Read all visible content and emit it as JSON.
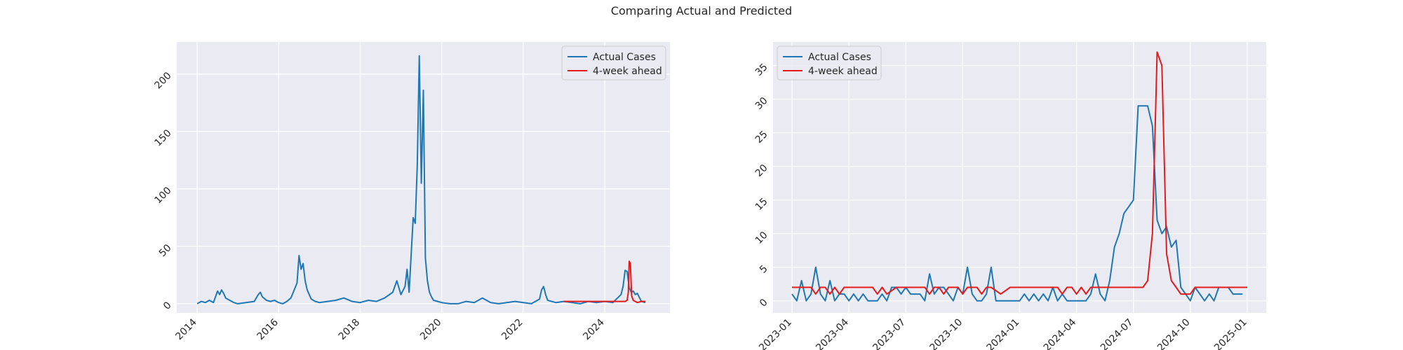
{
  "figure": {
    "title": "Comparing Actual and Predicted"
  },
  "colors": {
    "actual": "#1f77b4",
    "predicted": "#e41a1c",
    "axes_bg": "#eaeaf2",
    "grid": "#ffffff"
  },
  "chart_data": [
    {
      "type": "line",
      "title": "",
      "xlabel": "",
      "ylabel": "",
      "x_axis": "year",
      "xlim": [
        2013.5,
        2025.6
      ],
      "ylim": [
        -8,
        228
      ],
      "x_ticks": [
        2014,
        2016,
        2018,
        2020,
        2022,
        2024
      ],
      "x_tick_labels": [
        "2014",
        "2016",
        "2018",
        "2020",
        "2022",
        "2024"
      ],
      "y_ticks": [
        0,
        50,
        100,
        150,
        200
      ],
      "y_tick_labels": [
        "0",
        "50",
        "100",
        "150",
        "200"
      ],
      "grid": true,
      "legend_position": "upper-right",
      "series": [
        {
          "name": "Actual Cases",
          "color": "#1f77b4",
          "x": [
            2014.0,
            2014.1,
            2014.2,
            2014.3,
            2014.4,
            2014.45,
            2014.5,
            2014.55,
            2014.6,
            2014.65,
            2014.7,
            2014.8,
            2014.9,
            2015.0,
            2015.2,
            2015.4,
            2015.5,
            2015.55,
            2015.6,
            2015.7,
            2015.8,
            2015.9,
            2016.0,
            2016.1,
            2016.2,
            2016.3,
            2016.45,
            2016.5,
            2016.55,
            2016.6,
            2016.65,
            2016.7,
            2016.8,
            2016.9,
            2017.0,
            2017.2,
            2017.4,
            2017.6,
            2017.8,
            2018.0,
            2018.2,
            2018.4,
            2018.6,
            2018.8,
            2018.9,
            2019.0,
            2019.1,
            2019.15,
            2019.2,
            2019.3,
            2019.35,
            2019.4,
            2019.45,
            2019.5,
            2019.55,
            2019.6,
            2019.65,
            2019.7,
            2019.75,
            2019.8,
            2019.9,
            2020.0,
            2020.2,
            2020.4,
            2020.6,
            2020.8,
            2021.0,
            2021.2,
            2021.4,
            2021.6,
            2021.8,
            2022.0,
            2022.2,
            2022.4,
            2022.45,
            2022.5,
            2022.55,
            2022.6,
            2022.8,
            2023.0,
            2023.2,
            2023.4,
            2023.6,
            2023.8,
            2024.0,
            2024.2,
            2024.4,
            2024.45,
            2024.5,
            2024.55,
            2024.6,
            2024.65,
            2024.7,
            2024.75,
            2024.8,
            2024.9,
            2025.0
          ],
          "y": [
            0,
            2,
            1,
            3,
            1,
            6,
            11,
            8,
            12,
            9,
            5,
            3,
            1,
            0,
            1,
            2,
            8,
            10,
            6,
            3,
            2,
            3,
            1,
            0,
            2,
            5,
            18,
            42,
            30,
            35,
            20,
            12,
            4,
            2,
            1,
            2,
            3,
            5,
            2,
            1,
            3,
            2,
            5,
            10,
            20,
            8,
            15,
            30,
            10,
            75,
            70,
            120,
            216,
            105,
            186,
            40,
            20,
            10,
            6,
            3,
            2,
            1,
            0,
            0,
            2,
            1,
            5,
            1,
            0,
            1,
            2,
            1,
            0,
            4,
            12,
            15,
            8,
            3,
            1,
            2,
            1,
            0,
            2,
            1,
            2,
            1,
            8,
            15,
            29,
            28,
            14,
            10,
            11,
            8,
            9,
            2,
            1
          ]
        },
        {
          "name": "4-week ahead",
          "color": "#e41a1c",
          "x": [
            2023.0,
            2023.3,
            2023.6,
            2023.9,
            2024.2,
            2024.4,
            2024.5,
            2024.55,
            2024.58,
            2024.6,
            2024.63,
            2024.66,
            2024.7,
            2024.8,
            2024.9,
            2025.0
          ],
          "y": [
            2,
            2,
            2,
            2,
            2,
            2,
            2,
            3,
            10,
            37,
            35,
            7,
            3,
            1,
            2,
            2
          ]
        }
      ]
    },
    {
      "type": "line",
      "title": "",
      "xlabel": "",
      "ylabel": "",
      "x_axis": "date (month index, 0 = 2023-01)",
      "xlim": [
        -1.0,
        25.0
      ],
      "ylim": [
        -1.8,
        38.5
      ],
      "x_ticks": [
        0,
        3,
        6,
        9,
        12,
        15,
        18,
        21,
        24
      ],
      "x_tick_labels": [
        "2023-01",
        "2023-04",
        "2023-07",
        "2023-10",
        "2024-01",
        "2024-04",
        "2024-07",
        "2024-10",
        "2025-01"
      ],
      "y_ticks": [
        0,
        5,
        10,
        15,
        20,
        25,
        30,
        35
      ],
      "y_tick_labels": [
        "0",
        "5",
        "10",
        "15",
        "20",
        "25",
        "30",
        "35"
      ],
      "grid": true,
      "legend_position": "upper-left",
      "series": [
        {
          "name": "Actual Cases",
          "color": "#1f77b4",
          "x": [
            0.0,
            0.25,
            0.5,
            0.75,
            1.0,
            1.25,
            1.5,
            1.75,
            2.0,
            2.25,
            2.5,
            2.75,
            3.0,
            3.25,
            3.5,
            3.75,
            4.0,
            4.25,
            4.5,
            4.75,
            5.0,
            5.25,
            5.5,
            5.75,
            6.0,
            6.25,
            6.5,
            6.75,
            7.0,
            7.25,
            7.5,
            7.75,
            8.0,
            8.25,
            8.5,
            8.75,
            9.0,
            9.25,
            9.5,
            9.75,
            10.0,
            10.25,
            10.5,
            10.75,
            11.0,
            11.25,
            11.5,
            11.75,
            12.0,
            12.25,
            12.5,
            12.75,
            13.0,
            13.25,
            13.5,
            13.75,
            14.0,
            14.25,
            14.5,
            14.75,
            15.0,
            15.25,
            15.5,
            15.75,
            16.0,
            16.25,
            16.5,
            16.75,
            17.0,
            17.25,
            17.5,
            17.75,
            18.0,
            18.25,
            18.5,
            18.75,
            19.0,
            19.25,
            19.5,
            19.75,
            20.0,
            20.25,
            20.5,
            20.75,
            21.0,
            21.25,
            21.5,
            21.75,
            22.0,
            22.25,
            22.5,
            22.75,
            23.0,
            23.25,
            23.5,
            23.75
          ],
          "y": [
            1,
            0,
            3,
            0,
            1,
            5,
            1,
            0,
            3,
            0,
            1,
            1,
            0,
            1,
            0,
            1,
            0,
            0,
            0,
            1,
            0,
            2,
            2,
            1,
            2,
            1,
            1,
            1,
            0,
            4,
            1,
            2,
            2,
            1,
            0,
            2,
            1,
            5,
            1,
            0,
            0,
            1,
            5,
            0,
            0,
            0,
            0,
            0,
            0,
            1,
            0,
            1,
            0,
            1,
            0,
            2,
            0,
            1,
            0,
            0,
            0,
            0,
            0,
            1,
            4,
            1,
            0,
            3,
            8,
            10,
            13,
            14,
            15,
            29,
            29,
            29,
            26,
            12,
            10,
            11,
            8,
            9,
            2,
            1,
            0,
            2,
            1,
            0,
            1,
            0,
            2,
            2,
            2,
            1,
            1,
            1
          ]
        },
        {
          "name": "4-week ahead",
          "color": "#e41a1c",
          "x": [
            0.0,
            0.5,
            1.0,
            1.25,
            1.5,
            1.75,
            2.0,
            2.25,
            2.5,
            2.75,
            3.0,
            3.5,
            4.0,
            4.25,
            4.5,
            4.75,
            5.0,
            5.5,
            6.0,
            6.25,
            6.5,
            6.75,
            7.0,
            7.25,
            7.5,
            7.75,
            8.0,
            8.25,
            8.5,
            8.75,
            9.0,
            9.25,
            9.5,
            9.75,
            10.0,
            10.25,
            10.5,
            11.0,
            11.5,
            12.0,
            12.5,
            13.0,
            13.5,
            14.0,
            14.25,
            14.5,
            14.75,
            15.0,
            15.25,
            15.5,
            15.75,
            16.0,
            16.25,
            16.5,
            17.0,
            17.5,
            18.0,
            18.5,
            18.75,
            19.0,
            19.25,
            19.5,
            19.75,
            20.0,
            20.25,
            20.5,
            20.75,
            21.0,
            21.25,
            21.5,
            22.0,
            22.5,
            23.0,
            23.5,
            24.0
          ],
          "y": [
            2,
            2,
            2,
            1,
            2,
            2,
            1,
            2,
            1,
            2,
            2,
            2,
            2,
            2,
            1,
            2,
            1,
            2,
            2,
            2,
            2,
            2,
            2,
            1,
            2,
            2,
            1,
            2,
            2,
            2,
            1,
            2,
            2,
            2,
            1,
            2,
            2,
            1,
            2,
            2,
            2,
            2,
            2,
            2,
            1,
            2,
            2,
            1,
            2,
            1,
            2,
            2,
            2,
            2,
            2,
            2,
            2,
            2,
            3,
            10,
            37,
            35,
            7,
            3,
            2,
            1,
            1,
            1,
            2,
            2,
            2,
            2,
            2,
            2,
            2
          ]
        }
      ]
    }
  ]
}
